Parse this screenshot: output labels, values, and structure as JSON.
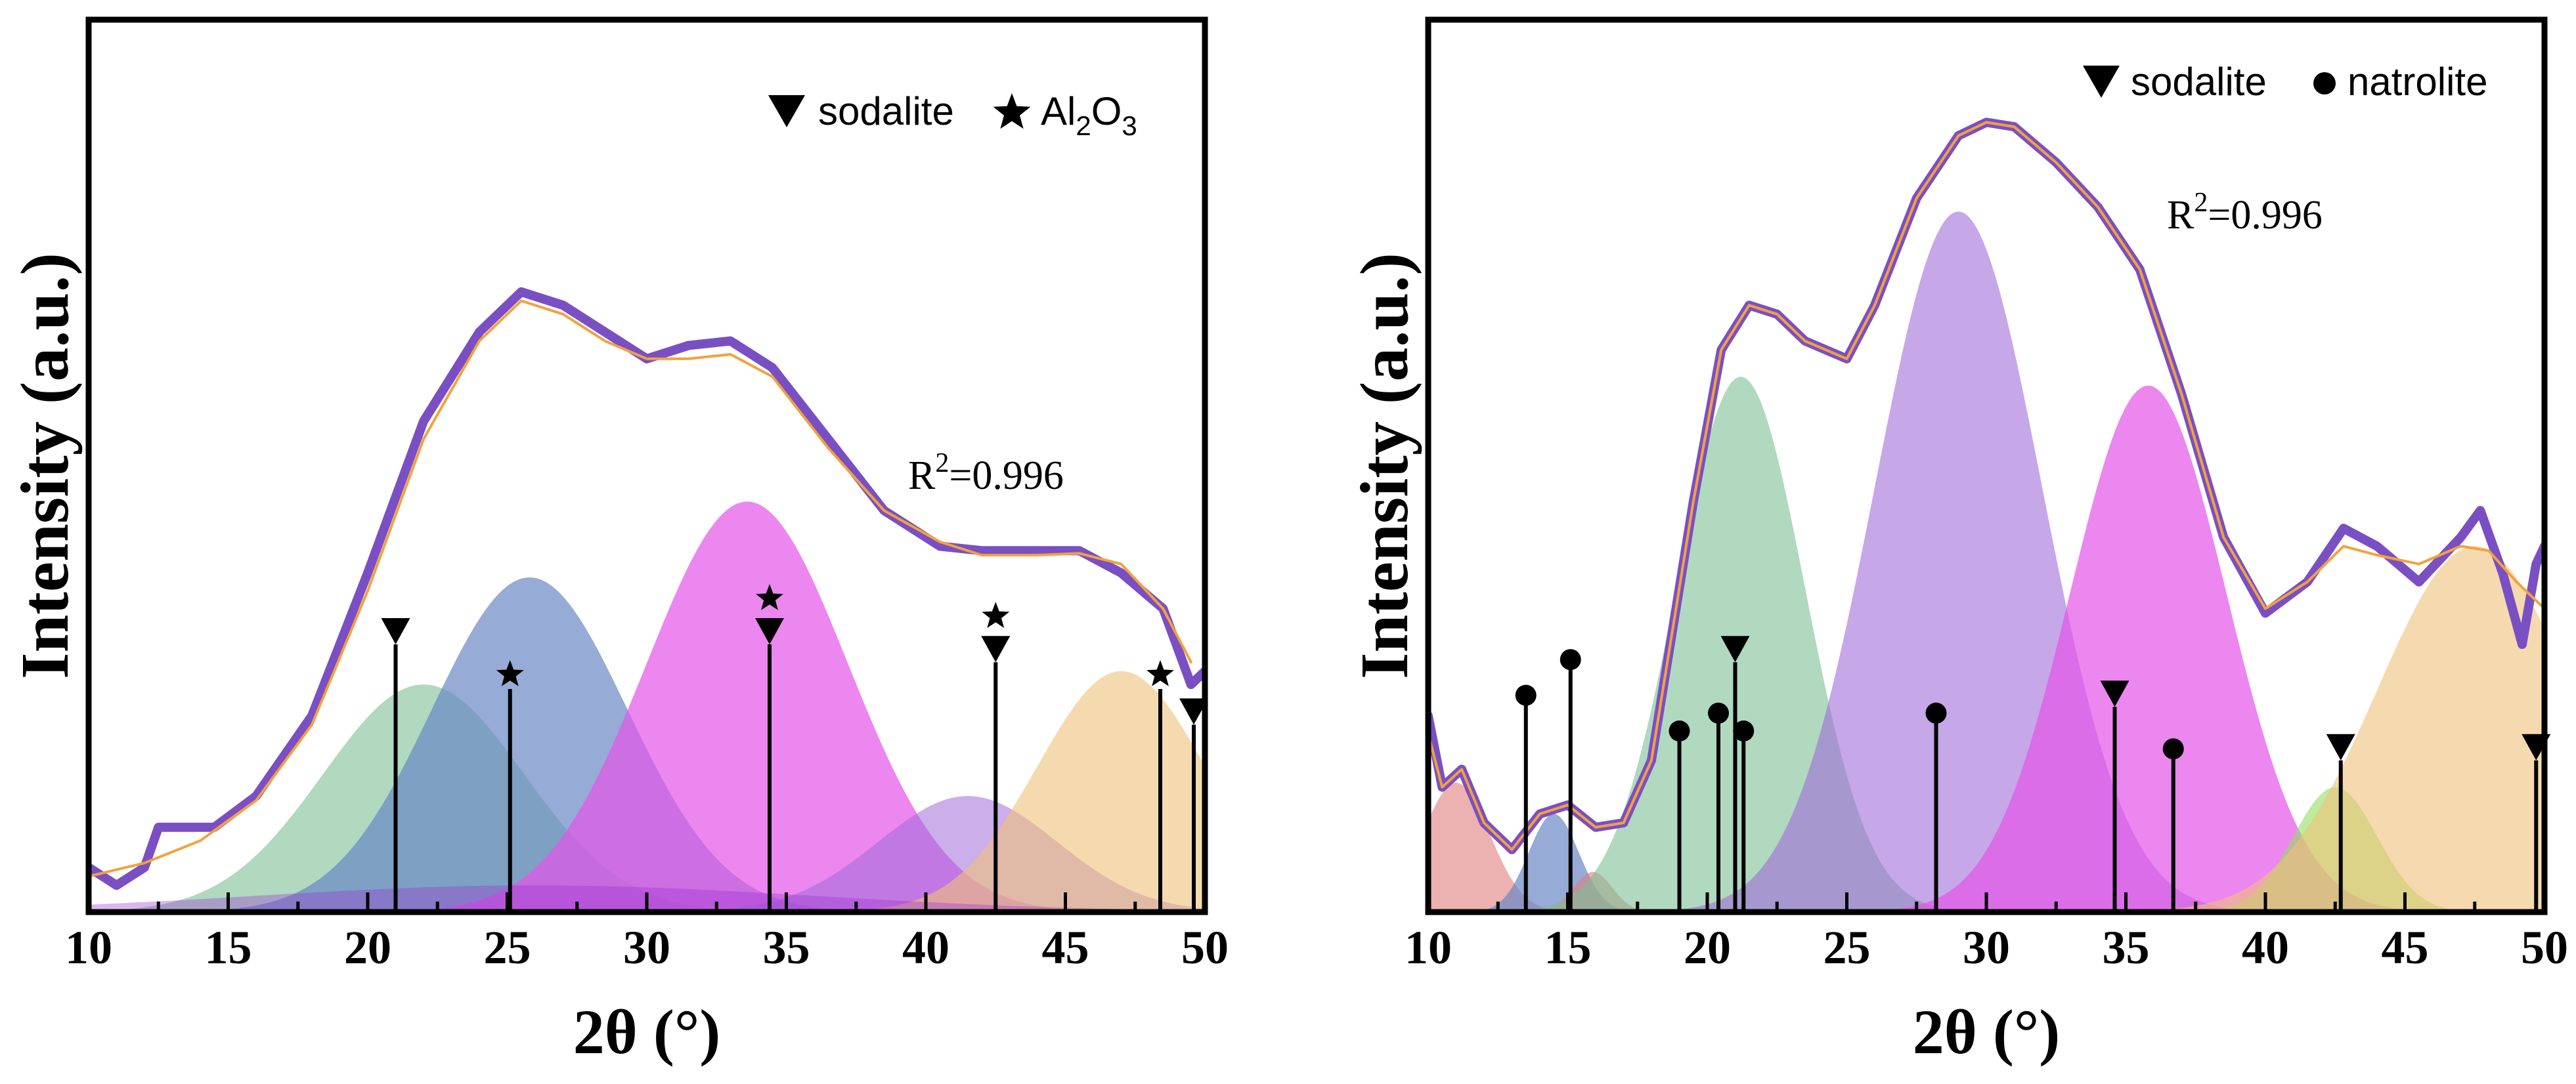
{
  "chart_data": [
    {
      "type": "area",
      "xlabel": "2θ (°)",
      "ylabel": "Intensity (a.u.)",
      "xlim": [
        10,
        50
      ],
      "ylim": [
        0,
        100
      ],
      "xticks": [
        "10",
        "15",
        "20",
        "25",
        "30",
        "35",
        "40",
        "45",
        "50"
      ],
      "legend": [
        {
          "marker": "triangle-down",
          "label": "sodalite",
          "sub": ""
        },
        {
          "marker": "star",
          "label": "Al",
          "sub": "2",
          "tail": "O",
          "sub2": "3"
        }
      ],
      "annotation": {
        "label": "R",
        "sup": "2",
        "tail": "=0.996",
        "x": 35.7,
        "y": 49
      },
      "peaks": [
        {
          "center": 22.0,
          "height": 25.5,
          "width": 3.6,
          "color": "#7cbf95",
          "opacity": 0.6
        },
        {
          "center": 25.8,
          "height": 37.5,
          "width": 3.5,
          "color": "#6a87c4",
          "opacity": 0.7
        },
        {
          "center": 33.6,
          "height": 46.0,
          "width": 3.6,
          "color": "#e454e8",
          "opacity": 0.7
        },
        {
          "center": 41.5,
          "height": 13.0,
          "width": 3.2,
          "color": "#a06cd8",
          "opacity": 0.55
        },
        {
          "center": 47.0,
          "height": 27.0,
          "width": 3.0,
          "color": "#f0c27a",
          "opacity": 0.6
        },
        {
          "center": 26.0,
          "height": 3.0,
          "width": 10.0,
          "color": "#9a2fd0",
          "opacity": 0.35
        }
      ],
      "measured": [
        [
          10,
          5
        ],
        [
          11,
          3
        ],
        [
          12,
          5
        ],
        [
          12.5,
          9.5
        ],
        [
          14.5,
          9.5
        ],
        [
          16,
          13
        ],
        [
          18,
          22
        ],
        [
          20,
          38
        ],
        [
          22,
          55
        ],
        [
          24,
          65
        ],
        [
          25.5,
          69.5
        ],
        [
          27,
          68
        ],
        [
          28.5,
          65
        ],
        [
          30,
          62
        ],
        [
          31.5,
          63.5
        ],
        [
          33,
          64
        ],
        [
          34.5,
          61
        ],
        [
          36.5,
          53
        ],
        [
          38.5,
          45
        ],
        [
          40.5,
          41
        ],
        [
          42,
          40.5
        ],
        [
          44,
          40.5
        ],
        [
          45.5,
          40.5
        ],
        [
          47,
          38
        ],
        [
          48.5,
          34
        ],
        [
          49.5,
          25.5
        ],
        [
          50,
          27
        ]
      ],
      "fit": [
        [
          10,
          4
        ],
        [
          12,
          5.5
        ],
        [
          14,
          8
        ],
        [
          16,
          12.5
        ],
        [
          18,
          21
        ],
        [
          20,
          36
        ],
        [
          22,
          53
        ],
        [
          24,
          64
        ],
        [
          25.5,
          68.5
        ],
        [
          27,
          67
        ],
        [
          28.5,
          64
        ],
        [
          30,
          62
        ],
        [
          31.5,
          62
        ],
        [
          33,
          62.5
        ],
        [
          34.5,
          60
        ],
        [
          36.5,
          52
        ],
        [
          38.5,
          45
        ],
        [
          40.5,
          41.5
        ],
        [
          42,
          40
        ],
        [
          44,
          40
        ],
        [
          45.5,
          40.2
        ],
        [
          47,
          39
        ],
        [
          48.5,
          34
        ],
        [
          49.5,
          28
        ]
      ],
      "markers": [
        {
          "x": 21.0,
          "height": 30,
          "symbols": [
            "triangle-down"
          ]
        },
        {
          "x": 25.1,
          "height": 25,
          "symbols": [
            "star"
          ]
        },
        {
          "x": 34.4,
          "height": 30,
          "symbols": [
            "triangle-down",
            "star"
          ]
        },
        {
          "x": 42.5,
          "height": 28,
          "symbols": [
            "triangle-down",
            "star"
          ]
        },
        {
          "x": 48.4,
          "height": 25,
          "symbols": [
            "star"
          ]
        },
        {
          "x": 49.6,
          "height": 21,
          "symbols": [
            "triangle-down"
          ]
        }
      ]
    },
    {
      "type": "area",
      "xlabel": "2θ (°)",
      "ylabel": "Intensity (a.u.)",
      "xlim": [
        10,
        50
      ],
      "ylim": [
        0,
        100
      ],
      "xticks": [
        "10",
        "15",
        "20",
        "25",
        "30",
        "35",
        "40",
        "45",
        "50"
      ],
      "legend": [
        {
          "marker": "triangle-down",
          "label": "sodalite"
        },
        {
          "marker": "circle",
          "label": "natrolite"
        }
      ],
      "annotation": {
        "label": "R",
        "sup": "2",
        "tail": "=0.996",
        "x": 29.5,
        "y": 78
      },
      "peaks": [
        {
          "center": 11.0,
          "height": 14.5,
          "width": 1.2,
          "color": "#e07d7d",
          "opacity": 0.6
        },
        {
          "center": 14.5,
          "height": 11.0,
          "width": 0.9,
          "color": "#6a87c4",
          "opacity": 0.7
        },
        {
          "center": 15.9,
          "height": 4.5,
          "width": 0.7,
          "color": "#e07d7d",
          "opacity": 0.6
        },
        {
          "center": 21.2,
          "height": 60.0,
          "width": 2.3,
          "color": "#7cbf95",
          "opacity": 0.6
        },
        {
          "center": 29.0,
          "height": 78.5,
          "width": 3.0,
          "color": "#a06cd8",
          "opacity": 0.6
        },
        {
          "center": 35.8,
          "height": 59.0,
          "width": 2.8,
          "color": "#e454e8",
          "opacity": 0.7
        },
        {
          "center": 42.5,
          "height": 14.0,
          "width": 1.5,
          "color": "#92de5f",
          "opacity": 0.6
        },
        {
          "center": 47.5,
          "height": 41.0,
          "width": 3.5,
          "color": "#f0c27a",
          "opacity": 0.6
        }
      ],
      "measured": [
        [
          10,
          22
        ],
        [
          10.5,
          14
        ],
        [
          11.2,
          16
        ],
        [
          12,
          10
        ],
        [
          13,
          7
        ],
        [
          14,
          11
        ],
        [
          15,
          12
        ],
        [
          16,
          9.5
        ],
        [
          17,
          10
        ],
        [
          18,
          17
        ],
        [
          19.5,
          46
        ],
        [
          20.5,
          63
        ],
        [
          21.5,
          68
        ],
        [
          22.5,
          67
        ],
        [
          23.5,
          64
        ],
        [
          25,
          62
        ],
        [
          26,
          68
        ],
        [
          27.5,
          80
        ],
        [
          29,
          87
        ],
        [
          30,
          88.5
        ],
        [
          31,
          88
        ],
        [
          32.5,
          84
        ],
        [
          34,
          79
        ],
        [
          35.5,
          72
        ],
        [
          37,
          58
        ],
        [
          38.5,
          42
        ],
        [
          40,
          33.5
        ],
        [
          41.5,
          37
        ],
        [
          42.8,
          43
        ],
        [
          44,
          41
        ],
        [
          45.5,
          37
        ],
        [
          47,
          42
        ],
        [
          47.7,
          45
        ],
        [
          48.5,
          38
        ],
        [
          49.2,
          30
        ],
        [
          49.7,
          39
        ],
        [
          50,
          41
        ]
      ],
      "fit": [
        [
          10,
          20
        ],
        [
          10.5,
          14
        ],
        [
          11.2,
          16
        ],
        [
          12,
          10
        ],
        [
          13,
          7
        ],
        [
          14,
          11
        ],
        [
          15,
          12
        ],
        [
          16,
          9.5
        ],
        [
          17,
          10
        ],
        [
          18,
          17
        ],
        [
          19.5,
          46
        ],
        [
          20.5,
          63
        ],
        [
          21.5,
          68
        ],
        [
          22.5,
          67
        ],
        [
          23.5,
          64
        ],
        [
          25,
          62
        ],
        [
          26,
          68
        ],
        [
          27.5,
          80
        ],
        [
          29,
          87
        ],
        [
          30,
          88.5
        ],
        [
          31,
          88
        ],
        [
          32.5,
          84
        ],
        [
          34,
          79
        ],
        [
          35.5,
          72
        ],
        [
          37,
          58
        ],
        [
          38.5,
          42
        ],
        [
          40,
          34
        ],
        [
          41.5,
          37
        ],
        [
          42.8,
          41
        ],
        [
          44,
          40
        ],
        [
          45.5,
          39
        ],
        [
          47,
          41
        ],
        [
          48,
          40.5
        ],
        [
          49,
          37
        ],
        [
          50,
          34
        ]
      ],
      "markers": [
        {
          "x": 13.5,
          "height": 24,
          "symbols": [
            "circle"
          ]
        },
        {
          "x": 15.1,
          "height": 28,
          "symbols": [
            "circle"
          ]
        },
        {
          "x": 19.0,
          "height": 20,
          "symbols": [
            "circle"
          ]
        },
        {
          "x": 20.4,
          "height": 22,
          "symbols": [
            "circle"
          ]
        },
        {
          "x": 21.0,
          "height": 28,
          "symbols": [
            "triangle-down"
          ]
        },
        {
          "x": 21.3,
          "height": 20,
          "symbols": [
            "circle"
          ]
        },
        {
          "x": 28.2,
          "height": 22,
          "symbols": [
            "circle"
          ]
        },
        {
          "x": 34.6,
          "height": 23,
          "symbols": [
            "triangle-down"
          ]
        },
        {
          "x": 36.7,
          "height": 18,
          "symbols": [
            "circle"
          ]
        },
        {
          "x": 42.7,
          "height": 17,
          "symbols": [
            "triangle-down"
          ]
        },
        {
          "x": 49.7,
          "height": 17,
          "symbols": [
            "triangle-down"
          ]
        }
      ]
    }
  ],
  "colors": {
    "measured_line": "#7a4fc4",
    "fit_line": "#f2a23c",
    "axis": "#000000"
  }
}
